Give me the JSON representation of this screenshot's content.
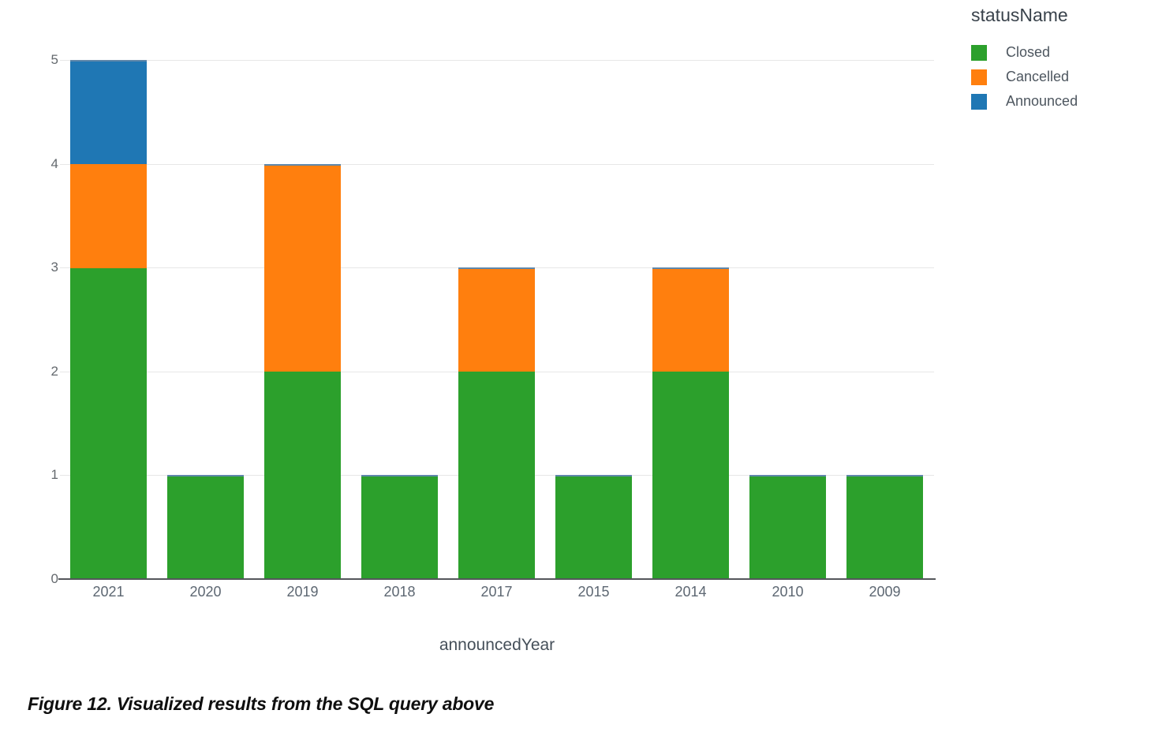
{
  "figure": {
    "caption": "Figure 12. Visualized results from the SQL query above"
  },
  "chart_data": {
    "type": "bar",
    "stacked": true,
    "title": "",
    "categories": [
      "2021",
      "2020",
      "2019",
      "2018",
      "2017",
      "2015",
      "2014",
      "2010",
      "2009"
    ],
    "series": [
      {
        "name": "Closed",
        "color": "#2ca02c",
        "values": [
          3,
          1,
          2,
          1,
          2,
          1,
          2,
          1,
          1
        ]
      },
      {
        "name": "Cancelled",
        "color": "#ff7f0e",
        "values": [
          1,
          0,
          2,
          0,
          1,
          0,
          1,
          0,
          0
        ]
      },
      {
        "name": "Announced",
        "color": "#1f77b4",
        "values": [
          1,
          0,
          0,
          0,
          0,
          0,
          0,
          0,
          0
        ]
      }
    ],
    "totals": [
      5,
      1,
      4,
      1,
      3,
      1,
      3,
      1,
      1
    ],
    "xlabel": "announcedYear",
    "ylabel": "",
    "ylim": [
      0,
      5
    ],
    "yticks": [
      0,
      1,
      2,
      3,
      4,
      5
    ],
    "grid": true,
    "legend": {
      "title": "statusName",
      "position": "top-right"
    }
  },
  "style_colors": {
    "closed_green": "#2ca02c",
    "cancelled_orange": "#ff7f0e",
    "announced_blue": "#1f77b4",
    "bar_top_stroke": "#5f87aa",
    "axis_line": "#54575b",
    "grid_line": "#e7e7e7",
    "tick_label": "#5d6772",
    "axis_title": "#454f59",
    "legend_text": "#4d565f"
  }
}
